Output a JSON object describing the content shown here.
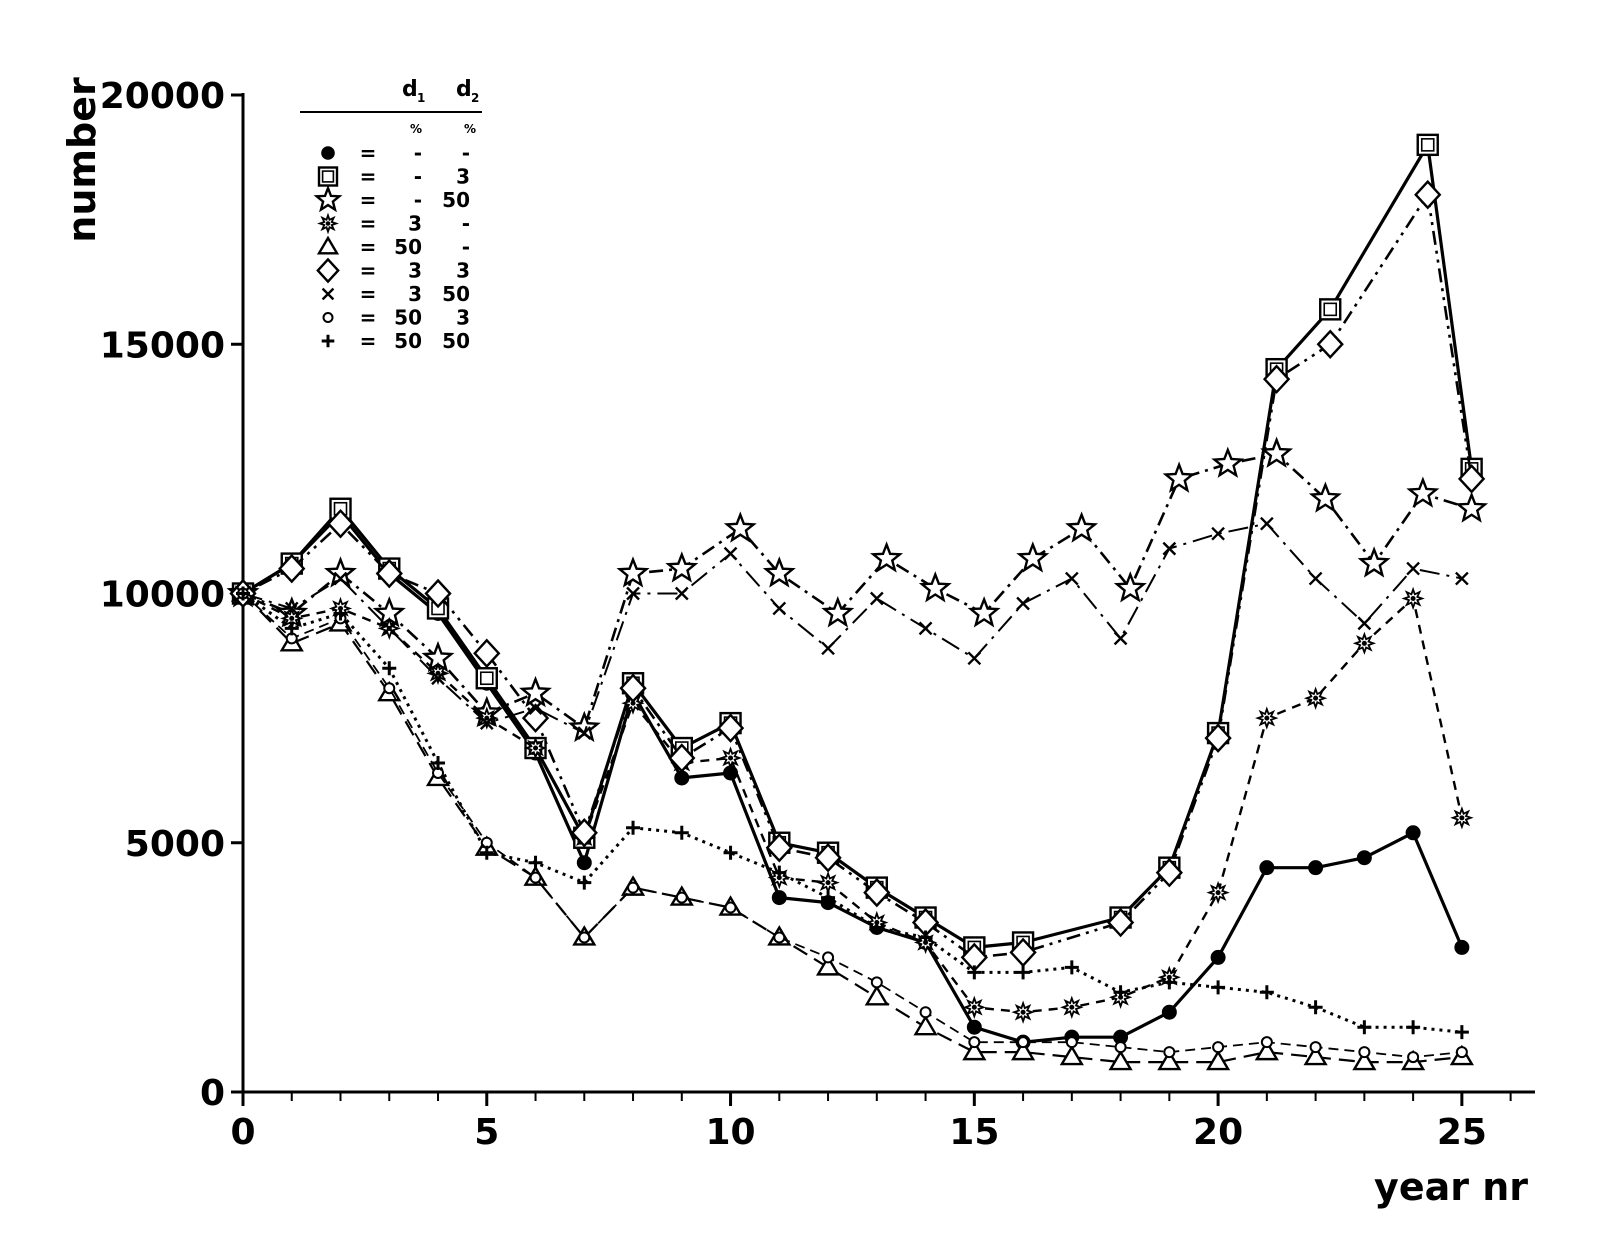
{
  "chart_data": {
    "type": "line",
    "title": "",
    "xlabel": "year nr",
    "ylabel": "number",
    "xlim": [
      0,
      26.5
    ],
    "ylim": [
      0,
      20000
    ],
    "x_ticks": [
      0,
      5,
      10,
      15,
      20,
      25
    ],
    "x_tick_labels": [
      "0",
      "5",
      "10",
      "15",
      "20",
      "25"
    ],
    "y_ticks": [
      0,
      5000,
      10000,
      15000,
      20000
    ],
    "y_tick_labels": [
      "0",
      "5000",
      "10000",
      "15000",
      "20000"
    ],
    "grid": false,
    "legend_position": "top-left",
    "legend": {
      "col1": "d",
      "col1_sub": "1",
      "col2": "d",
      "col2_sub": "2",
      "unit1": "%",
      "unit2": "%",
      "eq": "=",
      "rows": [
        {
          "marker": "filled-circle",
          "d1": "-",
          "d2": "-"
        },
        {
          "marker": "open-square",
          "d1": "-",
          "d2": "3"
        },
        {
          "marker": "star",
          "d1": "-",
          "d2": "50"
        },
        {
          "marker": "sun-star",
          "d1": "3",
          "d2": "-"
        },
        {
          "marker": "triangle",
          "d1": "50",
          "d2": "-"
        },
        {
          "marker": "diamond",
          "d1": "3",
          "d2": "3"
        },
        {
          "marker": "cross-x",
          "d1": "3",
          "d2": "50"
        },
        {
          "marker": "small-circle",
          "d1": "50",
          "d2": "3"
        },
        {
          "marker": "plus",
          "d1": "50",
          "d2": "50"
        }
      ]
    },
    "series": [
      {
        "marker": "filled-circle",
        "dash": "",
        "width": 3.2,
        "x": [
          0,
          1,
          2,
          3,
          4,
          5,
          6,
          7,
          8,
          9,
          10,
          11,
          12,
          13,
          14,
          15,
          16,
          17,
          18,
          19,
          20,
          21,
          22,
          23,
          24,
          25
        ],
        "y": [
          10000,
          10600,
          11600,
          10400,
          9600,
          8200,
          6800,
          4600,
          8000,
          6300,
          6400,
          3900,
          3800,
          3300,
          3000,
          1300,
          1000,
          1100,
          1100,
          1600,
          2700,
          4500,
          4500,
          4700,
          5200,
          2900
        ]
      },
      {
        "marker": "open-square",
        "dash": "",
        "width": 3.2,
        "x": [
          0,
          1,
          2,
          3,
          4,
          5,
          6,
          7,
          8,
          9,
          10,
          11,
          12,
          13,
          14,
          15,
          16,
          18,
          19,
          20,
          21.2,
          22.3,
          24.3,
          25.2
        ],
        "y": [
          10000,
          10600,
          11700,
          10500,
          9700,
          8300,
          6900,
          5100,
          8200,
          6900,
          7400,
          5000,
          4800,
          4100,
          3500,
          2900,
          3000,
          3500,
          4500,
          7200,
          14500,
          15700,
          19000,
          12500
        ]
      },
      {
        "marker": "star",
        "dash": "14 6 3 6",
        "width": 2.6,
        "x": [
          0,
          1,
          2,
          3,
          4,
          5,
          6,
          7,
          8,
          9,
          10.2,
          11,
          12.2,
          13.2,
          14.2,
          15.2,
          16.2,
          17.2,
          18.2,
          19.2,
          20.2,
          21.2,
          22.2,
          23.2,
          24.2,
          25.2
        ],
        "y": [
          10000,
          9600,
          10400,
          9600,
          8700,
          7600,
          8000,
          7300,
          10400,
          10500,
          11300,
          10400,
          9600,
          10700,
          10100,
          9600,
          10700,
          11300,
          10100,
          12300,
          12600,
          12800,
          11900,
          10600,
          12000,
          11700
        ]
      },
      {
        "marker": "sun-star",
        "dash": "9 7",
        "width": 2.4,
        "x": [
          0,
          1,
          2,
          3,
          4,
          5,
          6,
          7,
          8,
          9,
          10,
          11,
          12,
          13,
          14,
          15,
          16,
          17,
          18,
          19,
          20,
          21,
          22,
          23,
          24,
          25
        ],
        "y": [
          10000,
          9500,
          9700,
          9300,
          8400,
          7500,
          6900,
          5100,
          7800,
          6600,
          6700,
          4300,
          4200,
          3400,
          3000,
          1700,
          1600,
          1700,
          1900,
          2300,
          4000,
          7500,
          7900,
          9000,
          9900,
          5500
        ]
      },
      {
        "marker": "triangle",
        "dash": "16 8",
        "width": 2.2,
        "x": [
          0,
          1,
          2,
          3,
          4,
          5,
          6,
          7,
          8,
          9,
          10,
          11,
          12,
          13,
          14,
          15,
          16,
          17,
          18,
          19,
          20,
          21,
          22,
          23,
          24,
          25
        ],
        "y": [
          10000,
          9000,
          9400,
          8000,
          6300,
          4900,
          4300,
          3100,
          4100,
          3900,
          3700,
          3100,
          2500,
          1900,
          1300,
          800,
          800,
          700,
          600,
          600,
          600,
          800,
          700,
          600,
          600,
          700
        ]
      },
      {
        "marker": "diamond",
        "dash": "3 6 3 6 14 6",
        "width": 2.6,
        "x": [
          0,
          1,
          2,
          3,
          4,
          5,
          6,
          7,
          8,
          9,
          10,
          11,
          12,
          13,
          14,
          15,
          16,
          18,
          19,
          20,
          21.2,
          22.3,
          24.3,
          25.2
        ],
        "y": [
          10000,
          10500,
          11400,
          10400,
          10000,
          8800,
          7500,
          5200,
          8100,
          6700,
          7300,
          4900,
          4700,
          4000,
          3400,
          2700,
          2800,
          3400,
          4400,
          7100,
          14300,
          15000,
          18000,
          12300
        ]
      },
      {
        "marker": "cross-x",
        "dash": "20 7 3 7",
        "width": 2.0,
        "x": [
          0,
          1,
          2,
          3,
          4,
          5,
          6,
          7,
          8,
          9,
          10,
          11,
          12,
          13,
          14,
          15,
          16,
          17,
          18,
          19,
          20,
          21,
          22,
          23,
          24,
          25
        ],
        "y": [
          10000,
          9700,
          10300,
          9300,
          8300,
          7400,
          7700,
          7200,
          10000,
          10000,
          10800,
          9700,
          8900,
          9900,
          9300,
          8700,
          9800,
          10300,
          9100,
          10900,
          11200,
          11400,
          10300,
          9400,
          10500,
          10300
        ]
      },
      {
        "marker": "small-circle",
        "dash": "10 6",
        "width": 1.8,
        "x": [
          0,
          1,
          2,
          3,
          4,
          5,
          6,
          7,
          8,
          9,
          10,
          11,
          12,
          13,
          14,
          15,
          16,
          17,
          18,
          19,
          20,
          21,
          22,
          23,
          24,
          25
        ],
        "y": [
          10000,
          9100,
          9500,
          8100,
          6400,
          5000,
          4300,
          3100,
          4100,
          3900,
          3700,
          3100,
          2700,
          2200,
          1600,
          1000,
          1000,
          1000,
          900,
          800,
          900,
          1000,
          900,
          800,
          700,
          800
        ]
      },
      {
        "marker": "plus",
        "dash": "3 5",
        "width": 3.0,
        "x": [
          0,
          1,
          2,
          3,
          4,
          5,
          6,
          7,
          8,
          9,
          10,
          11,
          12,
          13,
          14,
          15,
          16,
          17,
          18,
          19,
          20,
          21,
          22,
          23,
          24,
          25
        ],
        "y": [
          10000,
          9300,
          9600,
          8500,
          6600,
          4800,
          4600,
          4200,
          5300,
          5200,
          4800,
          4400,
          3900,
          3300,
          3100,
          2400,
          2400,
          2500,
          2000,
          2200,
          2100,
          2000,
          1700,
          1300,
          1300,
          1200
        ]
      }
    ]
  }
}
